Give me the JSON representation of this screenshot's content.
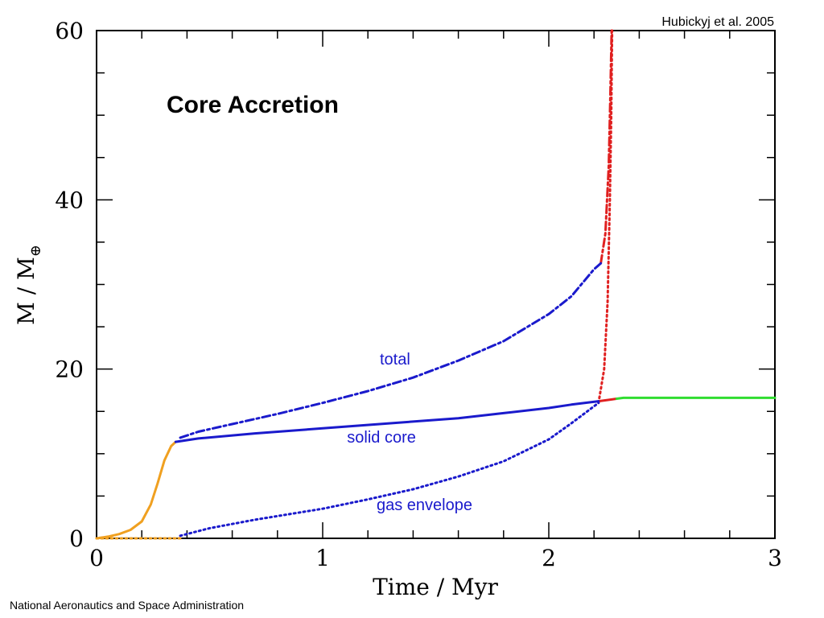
{
  "chart_data": {
    "type": "line",
    "title": "Core Accretion",
    "credit": "Hubickyj et al. 2005",
    "xlabel": "Time / Myr",
    "ylabel_main": "M  /  M",
    "ylabel_sub": "⊕",
    "xlim": [
      0,
      3
    ],
    "ylim": [
      0,
      60
    ],
    "xticks": [
      0,
      1,
      2,
      3
    ],
    "yticks": [
      0,
      20,
      40,
      60
    ],
    "grid": false,
    "series": [
      {
        "name": "total",
        "color": "#1a1acc",
        "dash": "dashdot",
        "label_pos": [
          1.32,
          21.2
        ],
        "points": [
          [
            0.37,
            11.9
          ],
          [
            0.45,
            12.6
          ],
          [
            0.6,
            13.5
          ],
          [
            0.8,
            14.7
          ],
          [
            1.0,
            16.0
          ],
          [
            1.2,
            17.4
          ],
          [
            1.4,
            19.0
          ],
          [
            1.6,
            21.0
          ],
          [
            1.8,
            23.3
          ],
          [
            2.0,
            26.5
          ],
          [
            2.1,
            28.6
          ],
          [
            2.2,
            31.8
          ],
          [
            2.23,
            32.5
          ]
        ]
      },
      {
        "name": "solid core",
        "color": "#1a1acc",
        "dash": "solid",
        "label_pos": [
          1.26,
          12.0
        ],
        "points": [
          [
            0.35,
            11.4
          ],
          [
            0.45,
            11.8
          ],
          [
            0.7,
            12.4
          ],
          [
            1.0,
            13.0
          ],
          [
            1.3,
            13.6
          ],
          [
            1.6,
            14.2
          ],
          [
            1.8,
            14.8
          ],
          [
            2.0,
            15.4
          ],
          [
            2.1,
            15.8
          ],
          [
            2.22,
            16.2
          ]
        ]
      },
      {
        "name": "gas envelope",
        "color": "#1a1acc",
        "dash": "dotted",
        "label_pos": [
          1.45,
          4.0
        ],
        "points": [
          [
            0.37,
            0.3
          ],
          [
            0.5,
            1.2
          ],
          [
            0.7,
            2.2
          ],
          [
            1.0,
            3.5
          ],
          [
            1.2,
            4.6
          ],
          [
            1.4,
            5.8
          ],
          [
            1.6,
            7.3
          ],
          [
            1.8,
            9.1
          ],
          [
            2.0,
            11.7
          ],
          [
            2.1,
            13.6
          ],
          [
            2.22,
            16.0
          ]
        ]
      }
    ],
    "extra_series": [
      {
        "color": "#f0a020",
        "dash": "solid",
        "points": [
          [
            0.0,
            0.0
          ],
          [
            0.05,
            0.2
          ],
          [
            0.1,
            0.5
          ],
          [
            0.15,
            1.0
          ],
          [
            0.2,
            2.0
          ],
          [
            0.24,
            4.0
          ],
          [
            0.27,
            6.5
          ],
          [
            0.3,
            9.2
          ],
          [
            0.33,
            10.9
          ],
          [
            0.35,
            11.4
          ]
        ]
      },
      {
        "color": "#f0a020",
        "dash": "dotted",
        "points": [
          [
            0.0,
            0.0
          ],
          [
            0.37,
            0.0
          ]
        ]
      },
      {
        "color": "#e02020",
        "dash": "solid",
        "points": [
          [
            2.22,
            16.2
          ],
          [
            2.3,
            16.5
          ]
        ]
      },
      {
        "color": "#e02020",
        "dash": "dashdot",
        "points": [
          [
            2.23,
            32.5
          ],
          [
            2.25,
            36.0
          ],
          [
            2.265,
            44.0
          ],
          [
            2.272,
            52.0
          ],
          [
            2.278,
            60.0
          ]
        ]
      },
      {
        "color": "#e02020",
        "dash": "dotted",
        "points": [
          [
            2.22,
            16.0
          ],
          [
            2.245,
            20.0
          ],
          [
            2.26,
            28.0
          ],
          [
            2.27,
            40.0
          ],
          [
            2.276,
            50.0
          ],
          [
            2.28,
            60.0
          ]
        ]
      },
      {
        "color": "#30dd30",
        "dash": "solid",
        "points": [
          [
            2.3,
            16.5
          ],
          [
            2.33,
            16.6
          ],
          [
            3.0,
            16.6
          ]
        ]
      }
    ]
  },
  "footer": {
    "text": "National Aeronautics and Space Administration"
  }
}
